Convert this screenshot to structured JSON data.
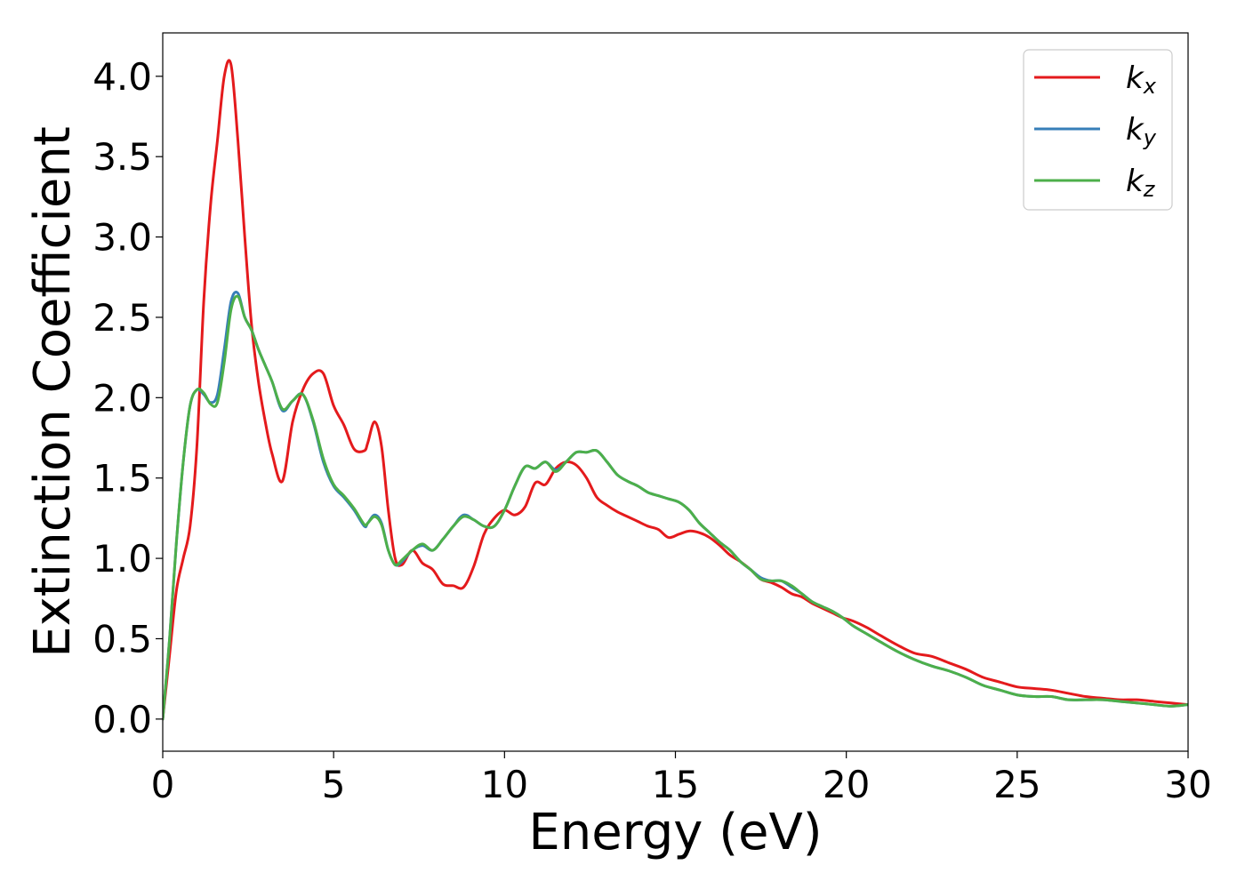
{
  "chart_data": {
    "type": "line",
    "title": "",
    "xlabel": "Energy (eV)",
    "ylabel": "Extinction Coefficient",
    "xlim": [
      0,
      30
    ],
    "ylim": [
      -0.2,
      4.27
    ],
    "xticks": [
      0,
      5,
      10,
      15,
      20,
      25,
      30
    ],
    "xtick_labels": [
      "0",
      "5",
      "10",
      "15",
      "20",
      "25",
      "30"
    ],
    "yticks": [
      0.0,
      0.5,
      1.0,
      1.5,
      2.0,
      2.5,
      3.0,
      3.5,
      4.0
    ],
    "ytick_labels": [
      "0.0",
      "0.5",
      "1.0",
      "1.5",
      "2.0",
      "2.5",
      "3.0",
      "3.5",
      "4.0"
    ],
    "grid": false,
    "legend_position": "top-right",
    "series": [
      {
        "name": "k",
        "subscript": "x",
        "color": "#e41a1c",
        "x": [
          0,
          0.2,
          0.4,
          0.6,
          0.8,
          1.0,
          1.2,
          1.4,
          1.6,
          1.8,
          2.0,
          2.2,
          2.4,
          2.6,
          2.8,
          3.0,
          3.2,
          3.5,
          3.8,
          4.1,
          4.4,
          4.7,
          5.0,
          5.3,
          5.6,
          5.9,
          6.0,
          6.2,
          6.4,
          6.6,
          6.8,
          7.0,
          7.3,
          7.6,
          7.9,
          8.2,
          8.5,
          8.8,
          9.1,
          9.4,
          9.7,
          10.0,
          10.3,
          10.6,
          10.9,
          11.2,
          11.5,
          11.8,
          12.1,
          12.4,
          12.7,
          13.0,
          13.3,
          13.6,
          13.9,
          14.2,
          14.5,
          14.8,
          15.1,
          15.4,
          15.7,
          16.0,
          16.3,
          16.6,
          16.9,
          17.2,
          17.5,
          17.8,
          18.1,
          18.4,
          18.7,
          19.0,
          19.3,
          19.6,
          19.9,
          20.2,
          20.6,
          21.0,
          21.5,
          22.0,
          22.5,
          23.0,
          23.5,
          24.0,
          24.5,
          25.0,
          25.5,
          26.0,
          26.5,
          27.0,
          27.5,
          28.0,
          28.5,
          29.0,
          29.5,
          30.0
        ],
        "values": [
          0.0,
          0.4,
          0.8,
          1.0,
          1.2,
          1.7,
          2.6,
          3.2,
          3.6,
          4.0,
          4.07,
          3.6,
          3.0,
          2.45,
          2.1,
          1.85,
          1.65,
          1.48,
          1.85,
          2.05,
          2.15,
          2.15,
          1.95,
          1.83,
          1.68,
          1.67,
          1.72,
          1.85,
          1.7,
          1.3,
          1.0,
          0.96,
          1.05,
          0.97,
          0.93,
          0.84,
          0.83,
          0.82,
          0.95,
          1.15,
          1.25,
          1.3,
          1.27,
          1.32,
          1.47,
          1.46,
          1.56,
          1.6,
          1.58,
          1.5,
          1.38,
          1.33,
          1.29,
          1.26,
          1.23,
          1.2,
          1.18,
          1.13,
          1.15,
          1.17,
          1.16,
          1.13,
          1.08,
          1.02,
          0.98,
          0.93,
          0.87,
          0.85,
          0.82,
          0.78,
          0.76,
          0.72,
          0.69,
          0.66,
          0.63,
          0.61,
          0.57,
          0.52,
          0.46,
          0.41,
          0.39,
          0.35,
          0.31,
          0.26,
          0.23,
          0.2,
          0.19,
          0.18,
          0.16,
          0.14,
          0.13,
          0.12,
          0.12,
          0.11,
          0.1,
          0.09
        ]
      },
      {
        "name": "k",
        "subscript": "y",
        "color": "#377eb8",
        "x": [
          0,
          0.2,
          0.4,
          0.6,
          0.8,
          1.0,
          1.2,
          1.4,
          1.6,
          1.8,
          2.0,
          2.2,
          2.4,
          2.6,
          2.8,
          3.0,
          3.2,
          3.5,
          3.8,
          4.1,
          4.4,
          4.7,
          5.0,
          5.3,
          5.6,
          5.9,
          6.0,
          6.2,
          6.4,
          6.6,
          6.8,
          7.0,
          7.3,
          7.6,
          7.9,
          8.2,
          8.5,
          8.8,
          9.1,
          9.4,
          9.7,
          10.0,
          10.3,
          10.6,
          10.9,
          11.2,
          11.5,
          11.8,
          12.1,
          12.4,
          12.7,
          13.0,
          13.3,
          13.6,
          13.9,
          14.2,
          14.5,
          14.8,
          15.1,
          15.4,
          15.7,
          16.0,
          16.3,
          16.6,
          16.9,
          17.2,
          17.5,
          17.8,
          18.1,
          18.4,
          18.7,
          19.0,
          19.3,
          19.6,
          19.9,
          20.2,
          20.6,
          21.0,
          21.5,
          22.0,
          22.5,
          23.0,
          23.5,
          24.0,
          24.5,
          25.0,
          25.5,
          26.0,
          26.5,
          27.0,
          27.5,
          28.0,
          28.5,
          29.0,
          29.5,
          30.0
        ],
        "values": [
          0.0,
          0.5,
          1.1,
          1.6,
          1.95,
          2.05,
          2.02,
          1.97,
          2.02,
          2.3,
          2.6,
          2.65,
          2.5,
          2.42,
          2.3,
          2.2,
          2.1,
          1.92,
          1.98,
          2.02,
          1.85,
          1.6,
          1.45,
          1.38,
          1.3,
          1.2,
          1.22,
          1.27,
          1.22,
          1.05,
          0.96,
          0.98,
          1.05,
          1.08,
          1.05,
          1.12,
          1.2,
          1.27,
          1.24,
          1.2,
          1.2,
          1.3,
          1.45,
          1.57,
          1.56,
          1.6,
          1.55,
          1.6,
          1.66,
          1.66,
          1.67,
          1.6,
          1.52,
          1.48,
          1.45,
          1.41,
          1.39,
          1.37,
          1.35,
          1.3,
          1.22,
          1.16,
          1.1,
          1.05,
          0.98,
          0.93,
          0.88,
          0.86,
          0.86,
          0.82,
          0.78,
          0.73,
          0.7,
          0.67,
          0.63,
          0.58,
          0.53,
          0.48,
          0.42,
          0.37,
          0.33,
          0.3,
          0.26,
          0.21,
          0.18,
          0.15,
          0.14,
          0.14,
          0.12,
          0.12,
          0.12,
          0.11,
          0.1,
          0.09,
          0.08,
          0.09
        ]
      },
      {
        "name": "k",
        "subscript": "z",
        "color": "#4daf4a",
        "x": [
          0,
          0.2,
          0.4,
          0.6,
          0.8,
          1.0,
          1.2,
          1.4,
          1.6,
          1.8,
          2.0,
          2.2,
          2.4,
          2.6,
          2.8,
          3.0,
          3.2,
          3.5,
          3.8,
          4.1,
          4.4,
          4.7,
          5.0,
          5.3,
          5.6,
          5.9,
          6.0,
          6.2,
          6.4,
          6.6,
          6.8,
          7.0,
          7.3,
          7.6,
          7.9,
          8.2,
          8.5,
          8.8,
          9.1,
          9.4,
          9.7,
          10.0,
          10.3,
          10.6,
          10.9,
          11.2,
          11.5,
          11.8,
          12.1,
          12.4,
          12.7,
          13.0,
          13.3,
          13.6,
          13.9,
          14.2,
          14.5,
          14.8,
          15.1,
          15.4,
          15.7,
          16.0,
          16.3,
          16.6,
          16.9,
          17.2,
          17.5,
          17.8,
          18.1,
          18.4,
          18.7,
          19.0,
          19.3,
          19.6,
          19.9,
          20.2,
          20.6,
          21.0,
          21.5,
          22.0,
          22.5,
          23.0,
          23.5,
          24.0,
          24.5,
          25.0,
          25.5,
          26.0,
          26.5,
          27.0,
          27.5,
          28.0,
          28.5,
          29.0,
          29.5,
          30.0
        ],
        "values": [
          0.0,
          0.5,
          1.1,
          1.6,
          1.95,
          2.05,
          2.03,
          1.96,
          1.97,
          2.22,
          2.55,
          2.63,
          2.5,
          2.42,
          2.3,
          2.2,
          2.1,
          1.93,
          1.98,
          2.02,
          1.86,
          1.62,
          1.46,
          1.39,
          1.31,
          1.21,
          1.22,
          1.26,
          1.21,
          1.05,
          0.96,
          0.99,
          1.05,
          1.09,
          1.05,
          1.12,
          1.2,
          1.26,
          1.24,
          1.2,
          1.2,
          1.3,
          1.45,
          1.57,
          1.56,
          1.6,
          1.54,
          1.6,
          1.66,
          1.66,
          1.67,
          1.6,
          1.52,
          1.48,
          1.45,
          1.41,
          1.39,
          1.37,
          1.35,
          1.3,
          1.22,
          1.16,
          1.1,
          1.05,
          0.98,
          0.93,
          0.87,
          0.86,
          0.86,
          0.83,
          0.78,
          0.73,
          0.7,
          0.67,
          0.63,
          0.58,
          0.53,
          0.48,
          0.42,
          0.37,
          0.33,
          0.3,
          0.26,
          0.21,
          0.18,
          0.15,
          0.14,
          0.14,
          0.12,
          0.12,
          0.12,
          0.11,
          0.1,
          0.09,
          0.08,
          0.09
        ]
      }
    ]
  }
}
